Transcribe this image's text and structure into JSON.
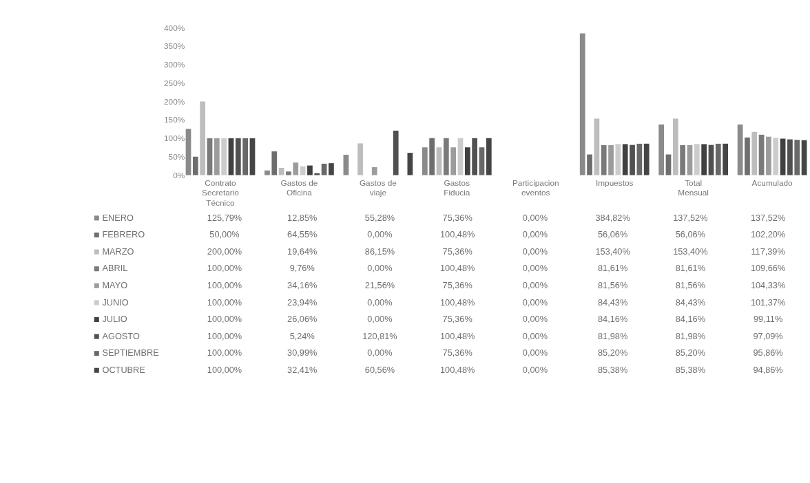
{
  "chart_data": {
    "type": "bar",
    "categories": [
      "Contrato Secretario Técnico",
      "Gastos de Oficina",
      "Gastos de viaje",
      "Gastos Fiducia",
      "Participacion eventos",
      "Impuestos",
      "Total Mensual",
      "Acumulado"
    ],
    "ylim": [
      0,
      400
    ],
    "yticks": [
      {
        "value": 0,
        "label": "0%"
      },
      {
        "value": 50,
        "label": "50%"
      },
      {
        "value": 100,
        "label": "100%"
      },
      {
        "value": 150,
        "label": "150%"
      },
      {
        "value": 200,
        "label": "200%"
      },
      {
        "value": 250,
        "label": "250%"
      },
      {
        "value": 300,
        "label": "300%"
      },
      {
        "value": 350,
        "label": "350%"
      },
      {
        "value": 400,
        "label": "400%"
      }
    ],
    "legend": "bottom left",
    "series": [
      {
        "name": "ENERO",
        "color": "#8a8a8a",
        "values": [
          125.79,
          12.85,
          55.28,
          75.36,
          0.0,
          384.82,
          137.52,
          137.52
        ],
        "value_labels": [
          "125,79%",
          "12,85%",
          "55,28%",
          "75,36%",
          "0,00%",
          "384,82%",
          "137,52%",
          "137,52%"
        ]
      },
      {
        "name": "FEBRERO",
        "color": "#6e6e6e",
        "values": [
          50.0,
          64.55,
          0.0,
          100.48,
          0.0,
          56.06,
          56.06,
          102.2
        ],
        "value_labels": [
          "50,00%",
          "64,55%",
          "0,00%",
          "100,48%",
          "0,00%",
          "56,06%",
          "56,06%",
          "102,20%"
        ]
      },
      {
        "name": "MARZO",
        "color": "#bdbdbd",
        "values": [
          200.0,
          19.64,
          86.15,
          75.36,
          0.0,
          153.4,
          153.4,
          117.39
        ],
        "value_labels": [
          "200,00%",
          "19,64%",
          "86,15%",
          "75,36%",
          "0,00%",
          "153,40%",
          "153,40%",
          "117,39%"
        ]
      },
      {
        "name": "ABRIL",
        "color": "#7a7a7a",
        "values": [
          100.0,
          9.76,
          0.0,
          100.48,
          0.0,
          81.61,
          81.61,
          109.66
        ],
        "value_labels": [
          "100,00%",
          "9,76%",
          "0,00%",
          "100,48%",
          "0,00%",
          "81,61%",
          "81,61%",
          "109,66%"
        ]
      },
      {
        "name": "MAYO",
        "color": "#9c9c9c",
        "values": [
          100.0,
          34.16,
          21.56,
          75.36,
          0.0,
          81.56,
          81.56,
          104.33
        ],
        "value_labels": [
          "100,00%",
          "34,16%",
          "21,56%",
          "75,36%",
          "0,00%",
          "81,56%",
          "81,56%",
          "104,33%"
        ]
      },
      {
        "name": "JUNIO",
        "color": "#cccccc",
        "values": [
          100.0,
          23.94,
          0.0,
          100.48,
          0.0,
          84.43,
          84.43,
          101.37
        ],
        "value_labels": [
          "100,00%",
          "23,94%",
          "0,00%",
          "100,48%",
          "0,00%",
          "84,43%",
          "84,43%",
          "101,37%"
        ]
      },
      {
        "name": "JULIO",
        "color": "#404040",
        "values": [
          100.0,
          26.06,
          0.0,
          75.36,
          0.0,
          84.16,
          84.16,
          99.11
        ],
        "value_labels": [
          "100,00%",
          "26,06%",
          "0,00%",
          "75,36%",
          "0,00%",
          "84,16%",
          "84,16%",
          "99,11%"
        ]
      },
      {
        "name": "AGOSTO",
        "color": "#505050",
        "values": [
          100.0,
          5.24,
          120.81,
          100.48,
          0.0,
          81.98,
          81.98,
          97.09
        ],
        "value_labels": [
          "100,00%",
          "5,24%",
          "120,81%",
          "100,48%",
          "0,00%",
          "81,98%",
          "81,98%",
          "97,09%"
        ]
      },
      {
        "name": "SEPTIEMBRE",
        "color": "#686868",
        "values": [
          100.0,
          30.99,
          0.0,
          75.36,
          0.0,
          85.2,
          85.2,
          95.86
        ],
        "value_labels": [
          "100,00%",
          "30,99%",
          "0,00%",
          "75,36%",
          "0,00%",
          "85,20%",
          "85,20%",
          "95,86%"
        ]
      },
      {
        "name": "OCTUBRE",
        "color": "#454545",
        "values": [
          100.0,
          32.41,
          60.56,
          100.48,
          0.0,
          85.38,
          85.38,
          94.86
        ],
        "value_labels": [
          "100,00%",
          "32,41%",
          "60,56%",
          "100,48%",
          "0,00%",
          "85,38%",
          "85,38%",
          "94,86%"
        ]
      }
    ]
  }
}
